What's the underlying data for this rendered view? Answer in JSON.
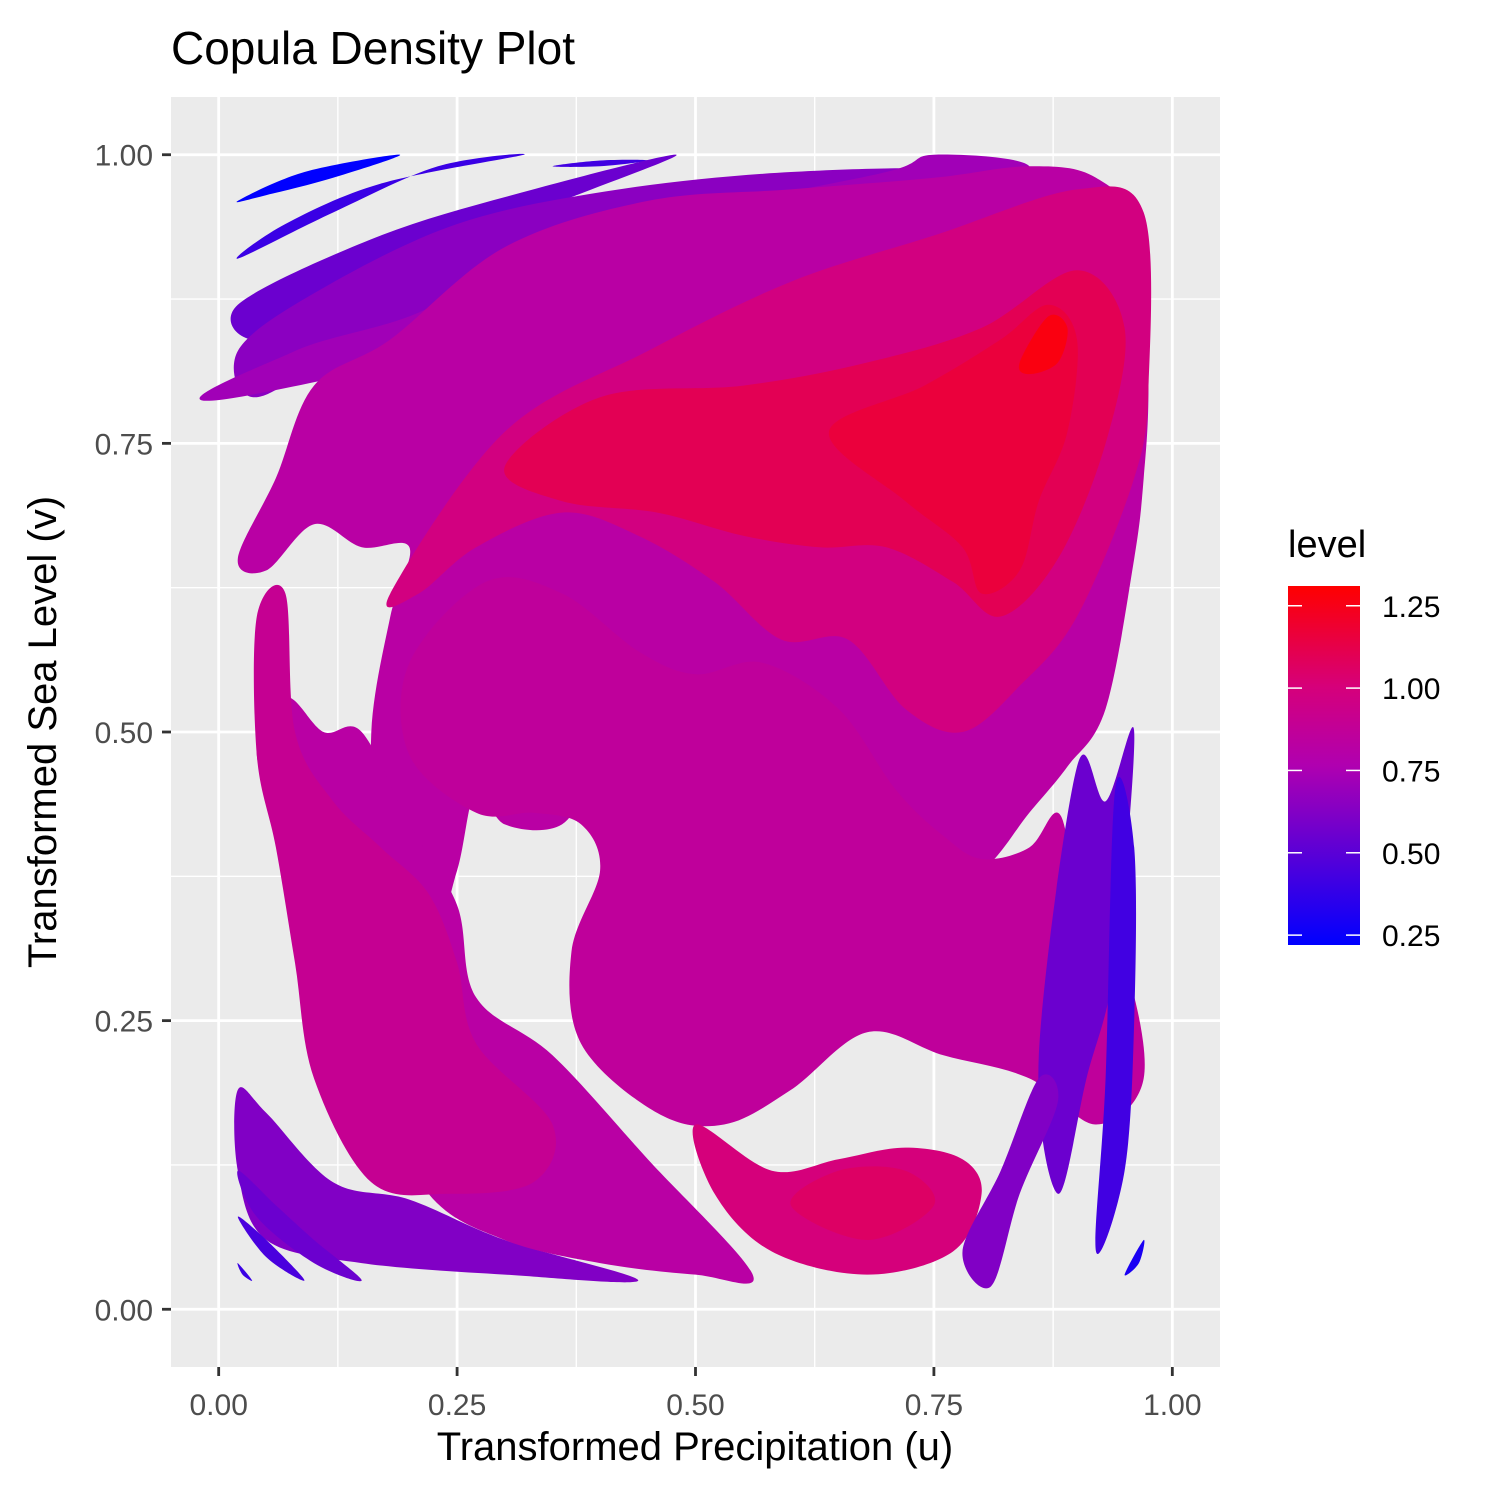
{
  "chart_data": {
    "type": "contour",
    "title": "Copula Density Plot",
    "xlabel": "Transformed Precipitation (u)",
    "ylabel": "Transformed Sea Level (v)",
    "xlim": [
      -0.05,
      1.05
    ],
    "ylim": [
      -0.05,
      1.05
    ],
    "x_ticks": [
      0.0,
      0.25,
      0.5,
      0.75,
      1.0
    ],
    "x_tick_labels": [
      "0.00",
      "0.25",
      "0.50",
      "0.75",
      "1.00"
    ],
    "y_ticks": [
      0.0,
      0.25,
      0.5,
      0.75,
      1.0
    ],
    "y_tick_labels": [
      "0.00",
      "0.25",
      "0.50",
      "0.75",
      "1.00"
    ],
    "grid": true,
    "background": "#EBEBEB",
    "legend": {
      "title": "level",
      "placement": "right",
      "range": [
        0.22,
        1.31
      ],
      "ticks": [
        0.25,
        0.5,
        0.75,
        1.0,
        1.25
      ],
      "tick_labels": [
        "0.25",
        "0.50",
        "0.75",
        "1.00",
        "1.25"
      ],
      "low_color": "#0000FF",
      "high_color": "#FF0000"
    },
    "peaks": [
      {
        "u": 0.87,
        "v": 0.84,
        "density": 1.28
      },
      {
        "u": 0.68,
        "v": 0.1,
        "density": 1.05
      },
      {
        "u": 0.25,
        "v": 0.2,
        "density": 1.0
      }
    ],
    "regions": [
      {
        "level": 0.22,
        "points": [
          [
            0.02,
            0.96
          ],
          [
            0.09,
            0.985
          ],
          [
            0.19,
            1.0
          ],
          [
            0.12,
            0.98
          ],
          [
            0.05,
            0.965
          ]
        ]
      },
      {
        "level": 0.4,
        "points": [
          [
            0.02,
            0.91
          ],
          [
            0.12,
            0.95
          ],
          [
            0.23,
            0.99
          ],
          [
            0.32,
            1.0
          ],
          [
            0.17,
            0.975
          ],
          [
            0.07,
            0.94
          ]
        ]
      },
      {
        "level": 0.42,
        "points": [
          [
            0.35,
            0.99
          ],
          [
            0.4,
            0.995
          ],
          [
            0.45,
            0.995
          ],
          [
            0.4,
            0.99
          ]
        ]
      },
      {
        "level": 0.55,
        "points": [
          [
            0.02,
            0.87
          ],
          [
            0.17,
            0.93
          ],
          [
            0.33,
            0.97
          ],
          [
            0.48,
            1.0
          ],
          [
            0.36,
            0.96
          ],
          [
            0.18,
            0.9
          ],
          [
            0.05,
            0.84
          ]
        ]
      },
      {
        "level": 0.65,
        "points": [
          [
            0.02,
            0.83
          ],
          [
            0.1,
            0.88
          ],
          [
            0.25,
            0.94
          ],
          [
            0.42,
            0.97
          ],
          [
            0.6,
            0.985
          ],
          [
            0.75,
            0.985
          ],
          [
            0.55,
            0.95
          ],
          [
            0.35,
            0.9
          ],
          [
            0.15,
            0.84
          ],
          [
            0.04,
            0.79
          ]
        ]
      },
      {
        "level": 0.72,
        "points": [
          [
            0.02,
            0.79
          ],
          [
            0.08,
            0.83
          ],
          [
            0.2,
            0.86
          ],
          [
            0.3,
            0.9
          ],
          [
            0.5,
            0.95
          ],
          [
            0.7,
            0.985
          ],
          [
            0.75,
            1.0
          ],
          [
            0.85,
            0.99
          ],
          [
            0.8,
            0.95
          ],
          [
            0.72,
            0.92
          ]
        ]
      },
      {
        "level": 0.62,
        "points": [
          [
            0.02,
            0.19
          ],
          [
            0.05,
            0.17
          ],
          [
            0.12,
            0.11
          ],
          [
            0.2,
            0.095
          ],
          [
            0.3,
            0.06
          ],
          [
            0.44,
            0.025
          ],
          [
            0.3,
            0.03
          ],
          [
            0.15,
            0.04
          ],
          [
            0.05,
            0.06
          ],
          [
            0.02,
            0.12
          ]
        ]
      },
      {
        "level": 0.55,
        "points": [
          [
            0.02,
            0.12
          ],
          [
            0.06,
            0.09
          ],
          [
            0.1,
            0.06
          ],
          [
            0.15,
            0.025
          ],
          [
            0.1,
            0.04
          ],
          [
            0.04,
            0.08
          ]
        ]
      },
      {
        "level": 0.45,
        "points": [
          [
            0.02,
            0.08
          ],
          [
            0.05,
            0.06
          ],
          [
            0.09,
            0.025
          ],
          [
            0.05,
            0.045
          ]
        ]
      },
      {
        "level": 0.4,
        "points": [
          [
            0.02,
            0.04
          ],
          [
            0.035,
            0.025
          ],
          [
            0.025,
            0.03
          ]
        ]
      },
      {
        "level": 0.82,
        "points": [
          [
            0.02,
            0.65
          ],
          [
            0.06,
            0.72
          ],
          [
            0.1,
            0.8
          ],
          [
            0.18,
            0.84
          ],
          [
            0.3,
            0.92
          ],
          [
            0.45,
            0.96
          ],
          [
            0.6,
            0.97
          ],
          [
            0.75,
            0.98
          ],
          [
            0.85,
            0.99
          ],
          [
            0.92,
            0.98
          ],
          [
            0.97,
            0.93
          ],
          [
            0.975,
            0.8
          ],
          [
            0.97,
            0.72
          ],
          [
            0.96,
            0.65
          ],
          [
            0.93,
            0.52
          ],
          [
            0.89,
            0.47
          ],
          [
            0.85,
            0.43
          ],
          [
            0.8,
            0.38
          ],
          [
            0.74,
            0.37
          ],
          [
            0.68,
            0.42
          ],
          [
            0.62,
            0.47
          ],
          [
            0.57,
            0.5
          ],
          [
            0.5,
            0.52
          ],
          [
            0.44,
            0.48
          ],
          [
            0.4,
            0.47
          ],
          [
            0.36,
            0.42
          ],
          [
            0.3,
            0.42
          ],
          [
            0.27,
            0.45
          ],
          [
            0.25,
            0.38
          ],
          [
            0.22,
            0.32
          ],
          [
            0.17,
            0.4
          ],
          [
            0.16,
            0.5
          ],
          [
            0.18,
            0.6
          ],
          [
            0.2,
            0.66
          ],
          [
            0.15,
            0.66
          ],
          [
            0.1,
            0.68
          ],
          [
            0.05,
            0.64
          ]
        ]
      },
      {
        "level": 0.82,
        "points": [
          [
            0.04,
            0.48
          ],
          [
            0.08,
            0.4
          ],
          [
            0.12,
            0.3
          ],
          [
            0.16,
            0.2
          ],
          [
            0.22,
            0.1
          ],
          [
            0.3,
            0.06
          ],
          [
            0.4,
            0.04
          ],
          [
            0.5,
            0.03
          ],
          [
            0.56,
            0.03
          ],
          [
            0.45,
            0.13
          ],
          [
            0.35,
            0.22
          ],
          [
            0.27,
            0.27
          ],
          [
            0.25,
            0.35
          ],
          [
            0.2,
            0.42
          ],
          [
            0.15,
            0.5
          ],
          [
            0.11,
            0.5
          ],
          [
            0.07,
            0.53
          ]
        ]
      },
      {
        "level": 0.86,
        "points": [
          [
            0.2,
            0.56
          ],
          [
            0.28,
            0.63
          ],
          [
            0.36,
            0.62
          ],
          [
            0.44,
            0.57
          ],
          [
            0.5,
            0.55
          ],
          [
            0.57,
            0.56
          ],
          [
            0.65,
            0.52
          ],
          [
            0.71,
            0.45
          ],
          [
            0.76,
            0.41
          ],
          [
            0.8,
            0.39
          ],
          [
            0.85,
            0.4
          ],
          [
            0.88,
            0.43
          ],
          [
            0.9,
            0.38
          ],
          [
            0.95,
            0.3
          ],
          [
            0.97,
            0.2
          ],
          [
            0.92,
            0.16
          ],
          [
            0.85,
            0.2
          ],
          [
            0.76,
            0.22
          ],
          [
            0.68,
            0.24
          ],
          [
            0.6,
            0.19
          ],
          [
            0.53,
            0.16
          ],
          [
            0.46,
            0.17
          ],
          [
            0.38,
            0.23
          ],
          [
            0.37,
            0.31
          ],
          [
            0.4,
            0.38
          ],
          [
            0.38,
            0.42
          ],
          [
            0.33,
            0.43
          ],
          [
            0.27,
            0.43
          ],
          [
            0.2,
            0.48
          ]
        ]
      },
      {
        "level": 0.9,
        "points": [
          [
            0.04,
            0.48
          ],
          [
            0.06,
            0.4
          ],
          [
            0.08,
            0.3
          ],
          [
            0.1,
            0.2
          ],
          [
            0.16,
            0.11
          ],
          [
            0.24,
            0.1
          ],
          [
            0.33,
            0.11
          ],
          [
            0.35,
            0.16
          ],
          [
            0.27,
            0.23
          ],
          [
            0.25,
            0.3
          ],
          [
            0.22,
            0.36
          ],
          [
            0.17,
            0.4
          ],
          [
            0.12,
            0.44
          ],
          [
            0.08,
            0.5
          ],
          [
            0.07,
            0.62
          ],
          [
            0.04,
            0.6
          ]
        ]
      },
      {
        "level": 1.0,
        "points": [
          [
            0.5,
            0.16
          ],
          [
            0.58,
            0.12
          ],
          [
            0.65,
            0.13
          ],
          [
            0.72,
            0.14
          ],
          [
            0.78,
            0.13
          ],
          [
            0.8,
            0.1
          ],
          [
            0.77,
            0.05
          ],
          [
            0.68,
            0.03
          ],
          [
            0.58,
            0.05
          ],
          [
            0.52,
            0.1
          ]
        ]
      },
      {
        "level": 1.06,
        "points": [
          [
            0.6,
            0.09
          ],
          [
            0.68,
            0.06
          ],
          [
            0.75,
            0.09
          ],
          [
            0.72,
            0.12
          ],
          [
            0.65,
            0.12
          ]
        ]
      },
      {
        "level": 0.98,
        "points": [
          [
            0.18,
            0.62
          ],
          [
            0.3,
            0.76
          ],
          [
            0.45,
            0.83
          ],
          [
            0.6,
            0.89
          ],
          [
            0.75,
            0.93
          ],
          [
            0.9,
            0.97
          ],
          [
            0.97,
            0.95
          ],
          [
            0.975,
            0.8
          ],
          [
            0.96,
            0.72
          ],
          [
            0.9,
            0.6
          ],
          [
            0.84,
            0.54
          ],
          [
            0.78,
            0.5
          ],
          [
            0.72,
            0.52
          ],
          [
            0.66,
            0.58
          ],
          [
            0.59,
            0.58
          ],
          [
            0.52,
            0.63
          ],
          [
            0.44,
            0.67
          ],
          [
            0.36,
            0.69
          ],
          [
            0.27,
            0.66
          ],
          [
            0.21,
            0.62
          ]
        ]
      },
      {
        "level": 1.1,
        "points": [
          [
            0.3,
            0.73
          ],
          [
            0.4,
            0.79
          ],
          [
            0.55,
            0.8
          ],
          [
            0.68,
            0.82
          ],
          [
            0.8,
            0.85
          ],
          [
            0.9,
            0.9
          ],
          [
            0.95,
            0.85
          ],
          [
            0.93,
            0.75
          ],
          [
            0.88,
            0.65
          ],
          [
            0.82,
            0.6
          ],
          [
            0.77,
            0.63
          ],
          [
            0.7,
            0.66
          ],
          [
            0.63,
            0.66
          ],
          [
            0.55,
            0.67
          ],
          [
            0.46,
            0.69
          ],
          [
            0.36,
            0.7
          ]
        ]
      },
      {
        "level": 1.16,
        "points": [
          [
            0.64,
            0.76
          ],
          [
            0.74,
            0.8
          ],
          [
            0.82,
            0.84
          ],
          [
            0.87,
            0.87
          ],
          [
            0.9,
            0.84
          ],
          [
            0.89,
            0.76
          ],
          [
            0.86,
            0.7
          ],
          [
            0.84,
            0.64
          ],
          [
            0.8,
            0.62
          ],
          [
            0.78,
            0.66
          ],
          [
            0.72,
            0.7
          ]
        ]
      },
      {
        "level": 1.27,
        "points": [
          [
            0.84,
            0.82
          ],
          [
            0.87,
            0.86
          ],
          [
            0.89,
            0.85
          ],
          [
            0.88,
            0.82
          ],
          [
            0.85,
            0.81
          ]
        ]
      },
      {
        "level": 0.55,
        "points": [
          [
            0.9,
            0.47
          ],
          [
            0.93,
            0.44
          ],
          [
            0.96,
            0.5
          ],
          [
            0.94,
            0.3
          ],
          [
            0.91,
            0.2
          ],
          [
            0.88,
            0.1
          ],
          [
            0.86,
            0.22
          ]
        ]
      },
      {
        "level": 0.42,
        "points": [
          [
            0.94,
            0.45
          ],
          [
            0.96,
            0.4
          ],
          [
            0.96,
            0.25
          ],
          [
            0.95,
            0.12
          ],
          [
            0.92,
            0.05
          ],
          [
            0.93,
            0.2
          ]
        ]
      },
      {
        "level": 0.3,
        "points": [
          [
            0.95,
            0.03
          ],
          [
            0.97,
            0.06
          ],
          [
            0.965,
            0.04
          ]
        ]
      },
      {
        "level": 0.62,
        "points": [
          [
            0.78,
            0.05
          ],
          [
            0.82,
            0.12
          ],
          [
            0.86,
            0.2
          ],
          [
            0.88,
            0.18
          ],
          [
            0.84,
            0.1
          ],
          [
            0.81,
            0.02
          ]
        ]
      }
    ]
  }
}
